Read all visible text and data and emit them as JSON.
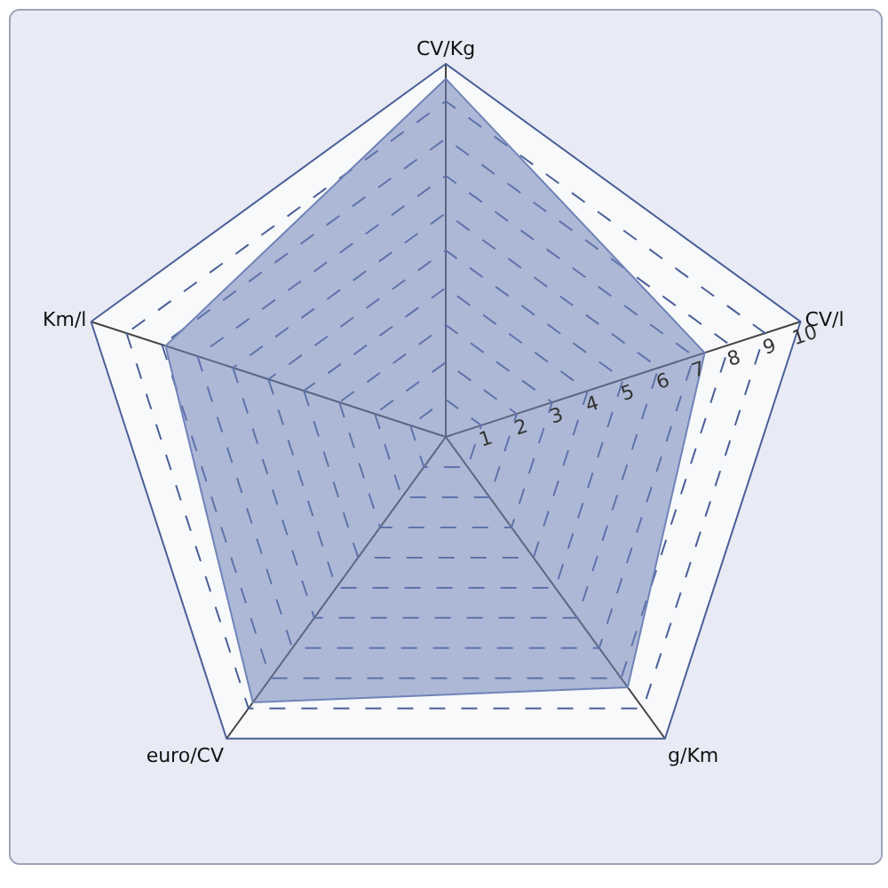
{
  "chart_data": {
    "type": "radar",
    "categories": [
      "CV/Kg",
      "CV/l",
      "g/Km",
      "euro/CV",
      "Km/l"
    ],
    "series": [
      {
        "color": "#6f83b8",
        "values": [
          9.6,
          7.3,
          8.3,
          8.8,
          7.9
        ]
      }
    ],
    "ylim": [
      0,
      10
    ],
    "yticks": [
      1,
      2,
      3,
      4,
      5,
      6,
      7,
      8,
      9,
      10
    ],
    "grid": true,
    "line_style": "dashed",
    "legend": false
  }
}
